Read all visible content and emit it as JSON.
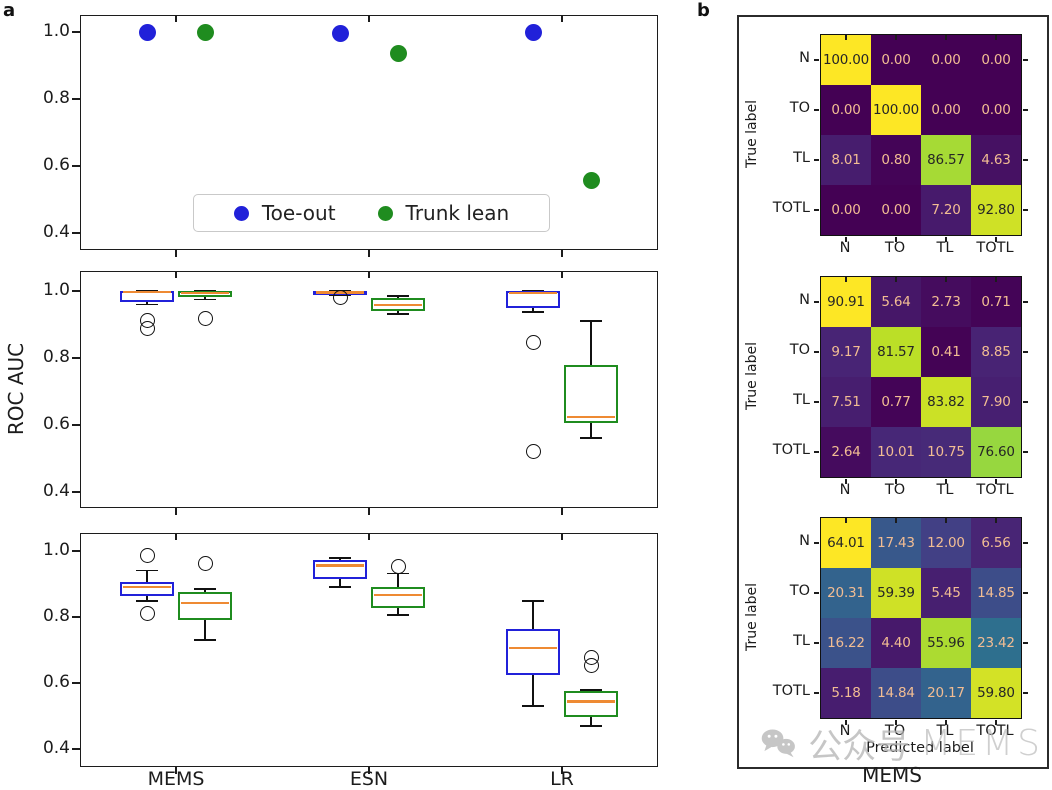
{
  "panels": {
    "a_label": "a",
    "b_label": "b"
  },
  "legend": {
    "position": "lower center"
  },
  "watermark": {
    "wechat_label": "公众号",
    "brand_label": "MEMS"
  },
  "chart_data": {
    "panel_a": {
      "ylabel": "ROC AUC",
      "x_categories": [
        "MEMS",
        "ESN",
        "LR"
      ],
      "yticks": [
        1.0,
        0.8,
        0.6,
        0.4
      ],
      "median_color": "#ee8a33",
      "subplots": [
        {
          "type": "scatter",
          "ylim": [
            0.349,
            1.051
          ],
          "series": [
            {
              "name": "Toe-out",
              "color": "#2121d9",
              "values": [
                1.0,
                0.997,
                1.0
              ]
            },
            {
              "name": "Trunk lean",
              "color": "#1f8c1f",
              "values": [
                1.0,
                0.937,
                0.558
              ]
            }
          ]
        },
        {
          "type": "box",
          "ylim": [
            0.352,
            1.06
          ],
          "series": [
            {
              "name": "Toe-out",
              "color": "#2121d9",
              "boxes": [
                {
                  "whislo": 0.96,
                  "q1": 0.967,
                  "med": 0.998,
                  "q3": 1.0,
                  "whishi": 1.0,
                  "fliers": [
                    0.913,
                    0.889
                  ]
                },
                {
                  "whislo": 0.988,
                  "q1": 0.991,
                  "med": 0.996,
                  "q3": 1.0,
                  "whishi": 1.0,
                  "fliers": [
                    0.982
                  ]
                },
                {
                  "whislo": 0.937,
                  "q1": 0.949,
                  "med": 0.995,
                  "q3": 1.0,
                  "whishi": 1.0,
                  "fliers": [
                    0.845,
                    0.52
                  ]
                }
              ]
            },
            {
              "name": "Trunk lean",
              "color": "#1f8c1f",
              "boxes": [
                {
                  "whislo": 0.975,
                  "q1": 0.982,
                  "med": 0.995,
                  "q3": 1.0,
                  "whishi": 1.0,
                  "fliers": [
                    0.919
                  ]
                },
                {
                  "whislo": 0.932,
                  "q1": 0.94,
                  "med": 0.958,
                  "q3": 0.979,
                  "whishi": 0.985,
                  "fliers": []
                },
                {
                  "whislo": 0.561,
                  "q1": 0.606,
                  "med": 0.624,
                  "q3": 0.779,
                  "whishi": 0.91,
                  "fliers": []
                }
              ]
            }
          ]
        },
        {
          "type": "box",
          "ylim": [
            0.345,
            1.055
          ],
          "series": [
            {
              "name": "Toe-out",
              "color": "#2121d9",
              "boxes": [
                {
                  "whislo": 0.848,
                  "q1": 0.864,
                  "med": 0.891,
                  "q3": 0.907,
                  "whishi": 0.941,
                  "fliers": [
                    0.988,
                    0.811
                  ]
                },
                {
                  "whislo": 0.891,
                  "q1": 0.916,
                  "med": 0.956,
                  "q3": 0.972,
                  "whishi": 0.978,
                  "fliers": []
                },
                {
                  "whislo": 0.529,
                  "q1": 0.625,
                  "med": 0.705,
                  "q3": 0.764,
                  "whishi": 0.848,
                  "fliers": []
                }
              ]
            },
            {
              "name": "Trunk lean",
              "color": "#1f8c1f",
              "boxes": [
                {
                  "whislo": 0.73,
                  "q1": 0.792,
                  "med": 0.842,
                  "q3": 0.876,
                  "whishi": 0.885,
                  "fliers": [
                    0.963
                  ]
                },
                {
                  "whislo": 0.807,
                  "q1": 0.826,
                  "med": 0.867,
                  "q3": 0.891,
                  "whishi": 0.932,
                  "fliers": [
                    0.953
                  ]
                },
                {
                  "whislo": 0.47,
                  "q1": 0.498,
                  "med": 0.544,
                  "q3": 0.575,
                  "whishi": 0.578,
                  "fliers": [
                    0.678,
                    0.654
                  ]
                }
              ]
            }
          ]
        }
      ]
    },
    "panel_b": {
      "type": "heatmap",
      "colormap": "viridis",
      "row_labels": [
        "N",
        "TO",
        "TL",
        "TOTL"
      ],
      "col_labels": [
        "N",
        "TO",
        "TL",
        "TOTL"
      ],
      "ylabel": "True label",
      "xlabel": "Predicted label",
      "model_label": "MEMS",
      "matrices": [
        {
          "values": [
            [
              100.0,
              0.0,
              0.0,
              0.0
            ],
            [
              0.0,
              100.0,
              0.0,
              0.0
            ],
            [
              8.01,
              0.8,
              86.57,
              4.63
            ],
            [
              0.0,
              0.0,
              7.2,
              92.8
            ]
          ]
        },
        {
          "values": [
            [
              90.91,
              5.64,
              2.73,
              0.71
            ],
            [
              9.17,
              81.57,
              0.41,
              8.85
            ],
            [
              7.51,
              0.77,
              83.82,
              7.9
            ],
            [
              2.64,
              10.01,
              10.75,
              76.6
            ]
          ]
        },
        {
          "values": [
            [
              64.01,
              17.43,
              12.0,
              6.56
            ],
            [
              20.31,
              59.39,
              5.45,
              14.85
            ],
            [
              16.22,
              4.4,
              55.96,
              23.42
            ],
            [
              5.18,
              14.84,
              20.17,
              59.8
            ]
          ]
        }
      ]
    }
  }
}
